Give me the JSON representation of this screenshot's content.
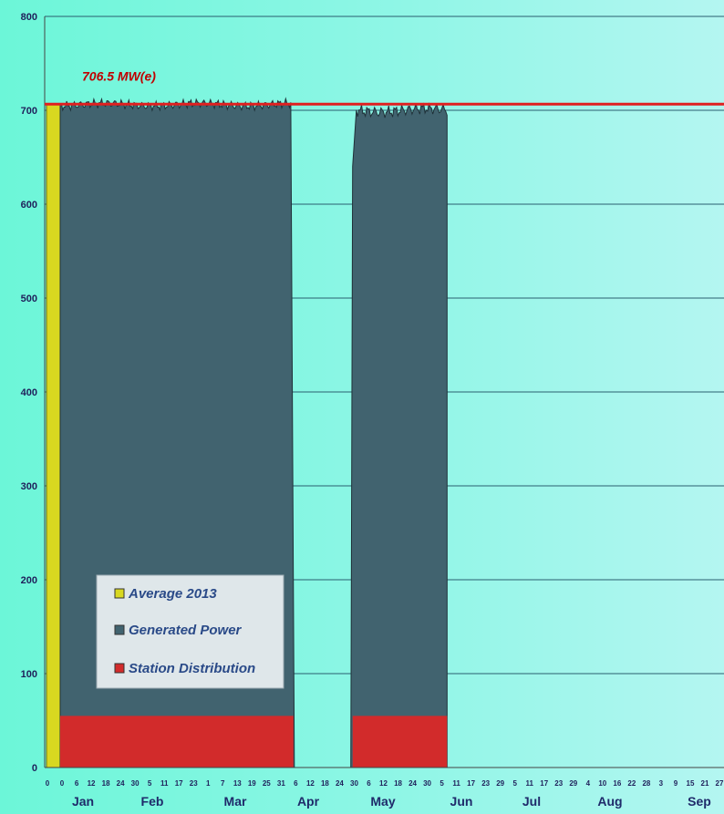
{
  "chart_data": {
    "type": "area",
    "title": "",
    "xlabel": "",
    "ylabel": "",
    "ylim": [
      0,
      800
    ],
    "yticks": [
      "0",
      "100",
      "200",
      "300",
      "400",
      "500",
      "600",
      "700",
      "800"
    ],
    "grid": "horizontal",
    "x_tick_labels": [
      "0",
      "0",
      "6",
      "12",
      "18",
      "24",
      "30",
      "5",
      "11",
      "17",
      "23",
      "1",
      "7",
      "13",
      "19",
      "25",
      "31",
      "6",
      "12",
      "18",
      "24",
      "30",
      "6",
      "12",
      "18",
      "24",
      "30",
      "5",
      "11",
      "17",
      "23",
      "29",
      "5",
      "11",
      "17",
      "23",
      "29",
      "4",
      "10",
      "16",
      "22",
      "28",
      "3",
      "9",
      "15",
      "21",
      "27"
    ],
    "months": [
      "Jan",
      "Feb",
      "Mar",
      "Apr",
      "May",
      "Jun",
      "Jul",
      "Aug",
      "Sep"
    ],
    "annotation": {
      "text": "706.5 MW(e)",
      "value": 706.5
    },
    "legend": {
      "position": "bottom-left",
      "entries": [
        {
          "label": "Average 2013",
          "color": "#d8d820"
        },
        {
          "label": "Generated Power",
          "color": "#41636f"
        },
        {
          "label": "Station  Distribution",
          "color": "#d22b2b"
        }
      ]
    },
    "colors": {
      "average": "#d8d820",
      "generated": "#41636f",
      "station": "#d22b2b",
      "reference_line": "#e02020",
      "grid": "#2a5f6f"
    },
    "series": [
      {
        "name": "Generated Power",
        "segments": [
          {
            "start_day": 1,
            "end_day": 126,
            "level": 706,
            "variation": 6,
            "ramp_down_days": 1
          },
          {
            "start_day": 158,
            "end_day": 210,
            "level": 700,
            "variation": 8,
            "ramp_up": [
              [
                158,
                0
              ],
              [
                159,
                640
              ],
              [
                161,
                700
              ]
            ]
          }
        ]
      },
      {
        "name": "Station  Distribution",
        "segments": [
          {
            "start_day": 1,
            "end_day": 127,
            "level": 55
          },
          {
            "start_day": 159,
            "end_day": 210,
            "level": 55
          }
        ]
      },
      {
        "name": "Average 2013",
        "segments": [
          {
            "start_day": -1,
            "end_day": 1,
            "level": 706.5
          }
        ]
      }
    ]
  }
}
